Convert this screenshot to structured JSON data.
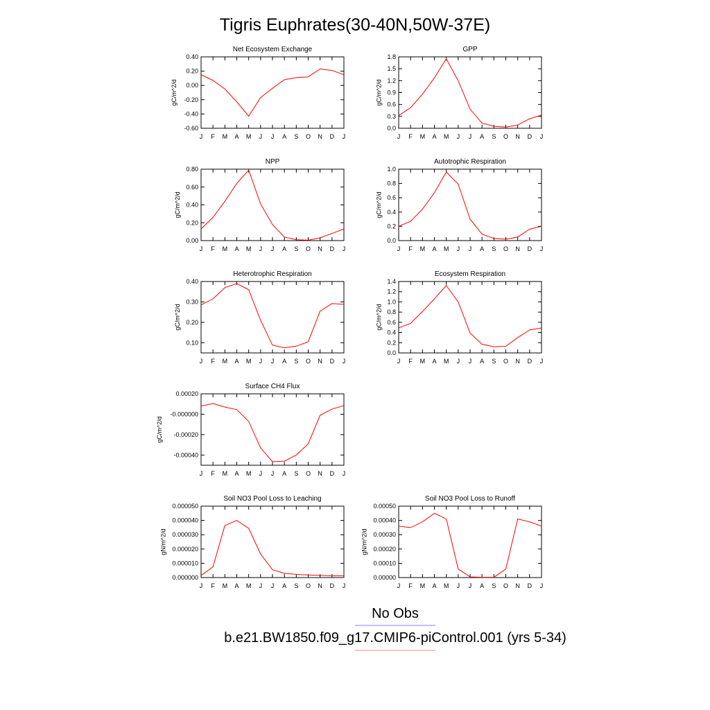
{
  "figure": {
    "title": "Tigris Euphrates(30-40N,50W-37E)",
    "legend": [
      {
        "label": "No Obs",
        "color": "#8080ff"
      },
      {
        "label": "b.e21.BW1850.f09_g17.CMIP6-piControl.001 (yrs 5-34)",
        "color": "#ff8080"
      }
    ],
    "line_color": "#ff0000"
  },
  "chart_data": [
    {
      "type": "line",
      "title": "Net Ecosystem Exchange",
      "ylabel": "gC/m^2/d",
      "categories": [
        "J",
        "F",
        "M",
        "A",
        "M",
        "J",
        "J",
        "A",
        "S",
        "O",
        "N",
        "D",
        "J"
      ],
      "ylim": [
        -0.6,
        0.4
      ],
      "yticks": [
        -0.6,
        -0.4,
        -0.2,
        0.0,
        0.2,
        0.4
      ],
      "ytick_labels": [
        "-0.60",
        "-0.40",
        "-0.20",
        "0.00",
        "0.20",
        "0.40"
      ],
      "values": [
        0.15,
        0.07,
        -0.05,
        -0.23,
        -0.43,
        -0.17,
        -0.04,
        0.08,
        0.11,
        0.12,
        0.23,
        0.21,
        0.15
      ]
    },
    {
      "type": "line",
      "title": "GPP",
      "ylabel": "gC/m^2/d",
      "categories": [
        "J",
        "F",
        "M",
        "A",
        "M",
        "J",
        "J",
        "A",
        "S",
        "O",
        "N",
        "D",
        "J"
      ],
      "ylim": [
        0,
        1.8
      ],
      "yticks": [
        0.0,
        0.3,
        0.6,
        0.9,
        1.2,
        1.5,
        1.8
      ],
      "ytick_labels": [
        "0.0",
        "0.3",
        "0.6",
        "0.9",
        "1.2",
        "1.5",
        "1.8"
      ],
      "values": [
        0.32,
        0.52,
        0.86,
        1.27,
        1.75,
        1.2,
        0.48,
        0.13,
        0.05,
        0.03,
        0.08,
        0.24,
        0.33
      ]
    },
    {
      "type": "line",
      "title": "NPP",
      "ylabel": "gC/m^2/d",
      "categories": [
        "J",
        "F",
        "M",
        "A",
        "M",
        "J",
        "J",
        "A",
        "S",
        "O",
        "N",
        "D",
        "J"
      ],
      "ylim": [
        0,
        0.8
      ],
      "yticks": [
        0.0,
        0.2,
        0.4,
        0.6,
        0.8
      ],
      "ytick_labels": [
        "0.00",
        "0.20",
        "0.40",
        "0.60",
        "0.80"
      ],
      "values": [
        0.13,
        0.26,
        0.44,
        0.64,
        0.79,
        0.41,
        0.18,
        0.04,
        0.01,
        0.005,
        0.03,
        0.08,
        0.13
      ]
    },
    {
      "type": "line",
      "title": "Autotrophic Respiration",
      "ylabel": "gC/m^2/d",
      "categories": [
        "J",
        "F",
        "M",
        "A",
        "M",
        "J",
        "J",
        "A",
        "S",
        "O",
        "N",
        "D",
        "J"
      ],
      "ylim": [
        0,
        1.0
      ],
      "yticks": [
        0.0,
        0.2,
        0.4,
        0.6,
        0.8,
        1.0
      ],
      "ytick_labels": [
        "0.0",
        "0.2",
        "0.4",
        "0.6",
        "0.8",
        "1.0"
      ],
      "values": [
        0.2,
        0.27,
        0.44,
        0.67,
        0.96,
        0.79,
        0.3,
        0.09,
        0.03,
        0.02,
        0.05,
        0.16,
        0.2
      ]
    },
    {
      "type": "line",
      "title": "Heterotrophic Respiration",
      "ylabel": "gC/m^2/d",
      "categories": [
        "J",
        "F",
        "M",
        "A",
        "M",
        "J",
        "J",
        "A",
        "S",
        "O",
        "N",
        "D",
        "J"
      ],
      "ylim": [
        0.05,
        0.4
      ],
      "yticks": [
        0.1,
        0.2,
        0.3,
        0.4
      ],
      "ytick_labels": [
        "0.10",
        "0.20",
        "0.30",
        "0.40"
      ],
      "values": [
        0.285,
        0.315,
        0.37,
        0.39,
        0.36,
        0.21,
        0.088,
        0.075,
        0.083,
        0.105,
        0.255,
        0.292,
        0.288
      ]
    },
    {
      "type": "line",
      "title": "Ecosystem Respiration",
      "ylabel": "gC/m^2/d",
      "categories": [
        "J",
        "F",
        "M",
        "A",
        "M",
        "J",
        "J",
        "A",
        "S",
        "O",
        "N",
        "D",
        "J"
      ],
      "ylim": [
        0,
        1.4
      ],
      "yticks": [
        0.0,
        0.2,
        0.4,
        0.6,
        0.8,
        1.0,
        1.2,
        1.4
      ],
      "ytick_labels": [
        "0.0",
        "0.2",
        "0.4",
        "0.6",
        "0.8",
        "1.0",
        "1.2",
        "1.4"
      ],
      "values": [
        0.49,
        0.58,
        0.81,
        1.06,
        1.32,
        1.0,
        0.39,
        0.17,
        0.12,
        0.13,
        0.3,
        0.45,
        0.49
      ]
    },
    {
      "type": "line",
      "title": "Surface CH4 Flux",
      "ylabel": "gC/m^2/d",
      "categories": [
        "J",
        "F",
        "M",
        "A",
        "M",
        "J",
        "J",
        "A",
        "S",
        "O",
        "N",
        "D",
        "J"
      ],
      "ylim": [
        -0.0005,
        0.0002
      ],
      "yticks": [
        -0.0004,
        -0.0002,
        0.0,
        0.0002
      ],
      "ytick_labels": [
        "-0.00040",
        "-0.00020",
        "-0.000000",
        "0.00020"
      ],
      "values": [
        8e-05,
        0.000105,
        7e-05,
        4.5e-05,
        -7e-05,
        -0.00033,
        -0.000465,
        -0.00046,
        -0.0004,
        -0.00029,
        -1e-05,
        5e-05,
        8.5e-05
      ]
    },
    {
      "type": "line",
      "title": "Soil NO3 Pool Loss to Leaching",
      "ylabel": "gN/m^2/d",
      "categories": [
        "J",
        "F",
        "M",
        "A",
        "M",
        "J",
        "J",
        "A",
        "S",
        "O",
        "N",
        "D",
        "J"
      ],
      "ylim": [
        0,
        5e-05
      ],
      "yticks": [
        0,
        1e-05,
        2e-05,
        3e-05,
        4e-05,
        5e-05
      ],
      "ytick_labels": [
        "0.000000",
        "0.000010",
        "0.000020",
        "0.000030",
        "0.000040",
        "0.000050"
      ],
      "values": [
        1.5e-06,
        7.5e-06,
        3.65e-05,
        4e-05,
        3.45e-05,
        1.65e-05,
        5.5e-06,
        3e-06,
        2.2e-06,
        1.8e-06,
        1.5e-06,
        1.2e-06,
        1.2e-06
      ]
    },
    {
      "type": "line",
      "title": "Soil NO3 Pool Loss to Runoff",
      "ylabel": "gN/m^2/d",
      "categories": [
        "J",
        "F",
        "M",
        "A",
        "M",
        "J",
        "J",
        "A",
        "S",
        "O",
        "N",
        "D",
        "J"
      ],
      "ylim": [
        0,
        0.0005
      ],
      "yticks": [
        0,
        0.0001,
        0.0002,
        0.0003,
        0.0004,
        0.0005
      ],
      "ytick_labels": [
        "0.00000",
        "0.00010",
        "0.00020",
        "0.00030",
        "0.00040",
        "0.00050"
      ],
      "values": [
        0.00036,
        0.00035,
        0.00039,
        0.00045,
        0.00041,
        6e-05,
        5e-06,
        2e-06,
        2e-06,
        6e-05,
        0.00041,
        0.00039,
        0.00036
      ]
    }
  ]
}
